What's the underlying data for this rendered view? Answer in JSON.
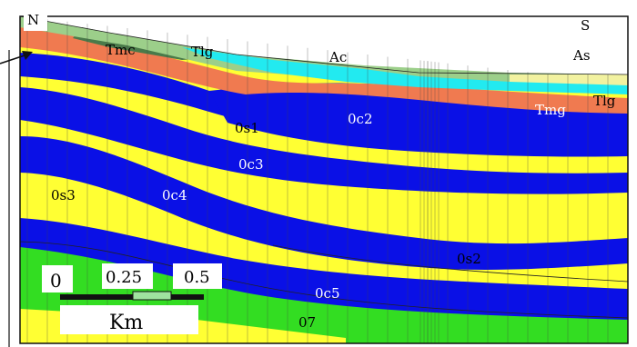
{
  "orientation": {
    "north": "N",
    "south": "S"
  },
  "units": {
    "surface": [
      "Tmc",
      "Tlg",
      "Ac",
      "As",
      "Tlg",
      "Tmg"
    ],
    "subsurface": [
      "0s1",
      "0c2",
      "0c3",
      "0s3",
      "0c4",
      "0s2",
      "0c5",
      "07"
    ]
  },
  "scale_bar": {
    "ticks": [
      "0",
      "0.25",
      "0.5"
    ],
    "unit": "Km"
  },
  "colors": {
    "yellow": "#ffff33",
    "blue": "#0a10e6",
    "orange": "#f07a50",
    "green": "#33dd22",
    "dark_green": "#4a7a4a",
    "light_green": "#9ccf8a",
    "cyan": "#22eaf0",
    "pale_yellow": "#f2f2a0"
  }
}
